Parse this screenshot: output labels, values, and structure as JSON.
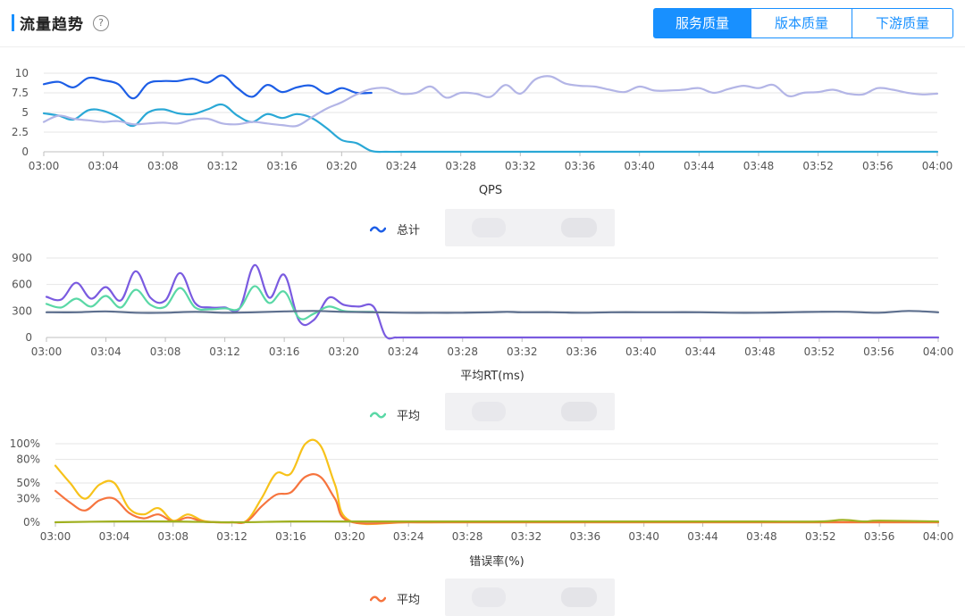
{
  "header": {
    "title": "流量趋势",
    "help_icon": "question-circle-icon",
    "tabs": [
      {
        "label": "服务质量",
        "active": true
      },
      {
        "label": "版本质量",
        "active": false
      },
      {
        "label": "下游质量",
        "active": false
      }
    ],
    "accent": "#1890ff"
  },
  "chart_data": [
    {
      "type": "line",
      "title": "",
      "xlabel": "QPS",
      "ylabel": "",
      "ylim": [
        0,
        10
      ],
      "yticks": [
        0,
        2.5,
        5,
        7.5,
        10
      ],
      "ytick_labels": [
        "0",
        "2.5",
        "5",
        "7.5",
        "10"
      ],
      "xlim": [
        0,
        60
      ],
      "xticks": [
        0,
        4,
        8,
        12,
        16,
        20,
        24,
        28,
        32,
        36,
        40,
        44,
        48,
        52,
        56,
        60
      ],
      "xtick_labels": [
        "03:00",
        "03:04",
        "03:08",
        "03:12",
        "03:16",
        "03:20",
        "03:24",
        "03:28",
        "03:32",
        "03:36",
        "03:40",
        "03:44",
        "03:48",
        "03:52",
        "03:56",
        "04:00"
      ],
      "grid": true,
      "legend": {
        "label": "总计",
        "color": "#1d5ee6",
        "position": "bottom-left"
      },
      "series": [
        {
          "color": "#1d5ee6",
          "x": [
            0,
            1,
            2,
            3,
            4,
            5,
            6,
            7,
            8,
            9,
            10,
            11,
            12,
            13,
            14,
            15,
            16,
            17,
            18,
            19,
            20,
            21,
            22
          ],
          "values": [
            8.6,
            8.9,
            8.2,
            9.4,
            9.1,
            8.6,
            6.8,
            8.7,
            9.0,
            9.0,
            9.3,
            8.8,
            9.7,
            8.1,
            7.0,
            8.5,
            7.6,
            8.2,
            8.4,
            7.4,
            8.1,
            7.5,
            7.5
          ]
        },
        {
          "color": "#2aa8d6",
          "x": [
            0,
            1,
            2,
            3,
            4,
            5,
            6,
            7,
            8,
            9,
            10,
            11,
            12,
            13,
            14,
            15,
            16,
            17,
            18,
            19,
            20,
            21,
            22,
            23,
            24,
            26,
            30,
            36,
            40,
            46,
            50,
            56,
            60
          ],
          "values": [
            4.9,
            4.6,
            4.1,
            5.3,
            5.2,
            4.4,
            3.3,
            5.0,
            5.4,
            4.9,
            4.8,
            5.4,
            6.0,
            4.6,
            3.8,
            4.8,
            4.3,
            4.8,
            4.3,
            3.0,
            1.5,
            1.1,
            0.1,
            0,
            0,
            0,
            0,
            0,
            0,
            0,
            0,
            0,
            0
          ]
        },
        {
          "color": "#b3b5e6",
          "x": [
            0,
            1,
            2,
            3,
            4,
            5,
            6,
            7,
            8,
            9,
            10,
            11,
            12,
            13,
            14,
            15,
            16,
            17,
            18,
            19,
            20,
            21,
            22,
            23,
            24,
            25,
            26,
            27,
            28,
            29,
            30,
            31,
            32,
            33,
            34,
            35,
            36,
            37,
            38,
            39,
            40,
            41,
            42,
            43,
            44,
            45,
            46,
            47,
            48,
            49,
            50,
            51,
            52,
            53,
            54,
            55,
            56,
            57,
            58,
            59,
            60
          ],
          "values": [
            3.8,
            4.6,
            4.2,
            4.0,
            3.8,
            3.9,
            3.5,
            3.6,
            3.7,
            3.6,
            4.1,
            4.2,
            3.6,
            3.5,
            3.8,
            3.6,
            3.4,
            3.3,
            4.4,
            5.5,
            6.3,
            7.3,
            8.0,
            8.1,
            7.4,
            7.5,
            8.3,
            6.9,
            7.5,
            7.4,
            7.0,
            8.5,
            7.4,
            9.2,
            9.6,
            8.7,
            8.4,
            8.3,
            7.9,
            7.6,
            8.3,
            7.8,
            7.8,
            7.9,
            8.1,
            7.5,
            8.0,
            8.4,
            8.1,
            8.5,
            7.1,
            7.5,
            7.6,
            7.9,
            7.4,
            7.3,
            8.1,
            7.9,
            7.5,
            7.3,
            7.4
          ]
        }
      ]
    },
    {
      "type": "line",
      "title": "",
      "xlabel": "平均RT(ms)",
      "ylabel": "",
      "ylim": [
        0,
        900
      ],
      "yticks": [
        0,
        300,
        600,
        900
      ],
      "ytick_labels": [
        "0",
        "300",
        "600",
        "900"
      ],
      "xlim": [
        0,
        60
      ],
      "xticks": [
        0,
        4,
        8,
        12,
        16,
        20,
        24,
        28,
        32,
        36,
        40,
        44,
        48,
        52,
        56,
        60
      ],
      "xtick_labels": [
        "03:00",
        "03:04",
        "03:08",
        "03:12",
        "03:16",
        "03:20",
        "03:24",
        "03:28",
        "03:32",
        "03:36",
        "03:40",
        "03:44",
        "03:48",
        "03:52",
        "03:56",
        "04:00"
      ],
      "grid": true,
      "legend": {
        "label": "平均",
        "color": "#5ad8a6",
        "position": "bottom-left"
      },
      "series": [
        {
          "color": "#7a5be0",
          "x": [
            0,
            1,
            2,
            3,
            4,
            5,
            6,
            7,
            8,
            9,
            10,
            11,
            12,
            13,
            14,
            15,
            16,
            17,
            18,
            19,
            20,
            21,
            22,
            22.8,
            23.5,
            24,
            28,
            32,
            36,
            40,
            44,
            48,
            52,
            56,
            60
          ],
          "values": [
            460,
            430,
            620,
            440,
            570,
            420,
            750,
            450,
            420,
            730,
            390,
            340,
            340,
            330,
            820,
            450,
            710,
            190,
            200,
            450,
            370,
            350,
            350,
            20,
            0,
            0,
            0,
            0,
            0,
            0,
            0,
            0,
            0,
            0,
            0
          ]
        },
        {
          "color": "#5ad8a6",
          "x": [
            0,
            1,
            2,
            3,
            4,
            5,
            6,
            7,
            8,
            9,
            10,
            11,
            12,
            13,
            14,
            15,
            16,
            17,
            18,
            19,
            20,
            21,
            22
          ],
          "values": [
            380,
            340,
            440,
            350,
            470,
            340,
            540,
            370,
            350,
            560,
            340,
            320,
            330,
            330,
            580,
            390,
            520,
            220,
            270,
            350,
            300,
            290,
            290
          ]
        },
        {
          "color": "#5d6f8e",
          "x": [
            0,
            2,
            4,
            6,
            8,
            10,
            12,
            14,
            16,
            18,
            20,
            22,
            24,
            26,
            28,
            30,
            31,
            32,
            34,
            36,
            38,
            40,
            42,
            44,
            46,
            48,
            50,
            52,
            54,
            56,
            58,
            60
          ],
          "values": [
            285,
            285,
            295,
            280,
            280,
            290,
            280,
            285,
            295,
            300,
            290,
            285,
            280,
            280,
            280,
            285,
            290,
            285,
            285,
            280,
            285,
            285,
            285,
            285,
            280,
            280,
            285,
            290,
            290,
            280,
            300,
            285
          ]
        }
      ]
    },
    {
      "type": "line",
      "title": "",
      "xlabel": "错误率(%)",
      "ylabel": "",
      "ylim": [
        0,
        100
      ],
      "yticks": [
        0,
        30,
        50,
        80,
        100
      ],
      "ytick_labels": [
        "0%",
        "30%",
        "50%",
        "80%",
        "100%"
      ],
      "xlim": [
        0,
        60
      ],
      "xticks": [
        0,
        4,
        8,
        12,
        16,
        20,
        24,
        28,
        32,
        36,
        40,
        44,
        48,
        52,
        56,
        60
      ],
      "xtick_labels": [
        "03:00",
        "03:04",
        "03:08",
        "03:12",
        "03:16",
        "03:20",
        "03:24",
        "03:28",
        "03:32",
        "03:36",
        "03:40",
        "03:44",
        "03:48",
        "03:52",
        "03:56",
        "04:00"
      ],
      "grid": true,
      "legend": {
        "label": "平均",
        "color": "#f6743e",
        "position": "bottom-left"
      },
      "series": [
        {
          "color": "#f7c21a",
          "x": [
            0,
            1,
            2,
            3,
            4,
            5,
            6,
            7,
            8,
            9,
            10,
            11,
            12,
            13,
            14,
            15,
            16,
            17,
            18,
            19,
            20,
            24,
            28,
            32,
            36,
            40,
            44,
            48,
            52,
            56,
            60
          ],
          "values": [
            72,
            50,
            30,
            48,
            50,
            18,
            10,
            18,
            2,
            10,
            2,
            0,
            0,
            2,
            30,
            62,
            62,
            100,
            98,
            48,
            2,
            0,
            0,
            0,
            0,
            0,
            0,
            0,
            0,
            0,
            0
          ]
        },
        {
          "color": "#f6743e",
          "x": [
            0,
            1,
            2,
            3,
            4,
            5,
            6,
            7,
            8,
            9,
            10,
            11,
            12,
            13,
            14,
            15,
            16,
            17,
            18,
            19,
            20,
            24,
            28,
            32,
            36,
            40,
            44,
            48,
            52,
            56,
            60
          ],
          "values": [
            40,
            25,
            15,
            28,
            30,
            12,
            5,
            10,
            1,
            6,
            1,
            0,
            0,
            1,
            20,
            35,
            38,
            58,
            58,
            30,
            1,
            0,
            0,
            0,
            0,
            0,
            0,
            0,
            0,
            0,
            0
          ]
        },
        {
          "color": "#9fb01f",
          "x": [
            0,
            4,
            8,
            12,
            16,
            20,
            24,
            28,
            32,
            36,
            40,
            44,
            48,
            52,
            53.5,
            55,
            56,
            60
          ],
          "values": [
            0,
            1,
            1,
            0,
            1,
            1,
            1,
            1,
            1,
            1,
            1,
            1,
            1,
            1,
            3,
            1,
            2,
            1
          ]
        }
      ]
    }
  ]
}
